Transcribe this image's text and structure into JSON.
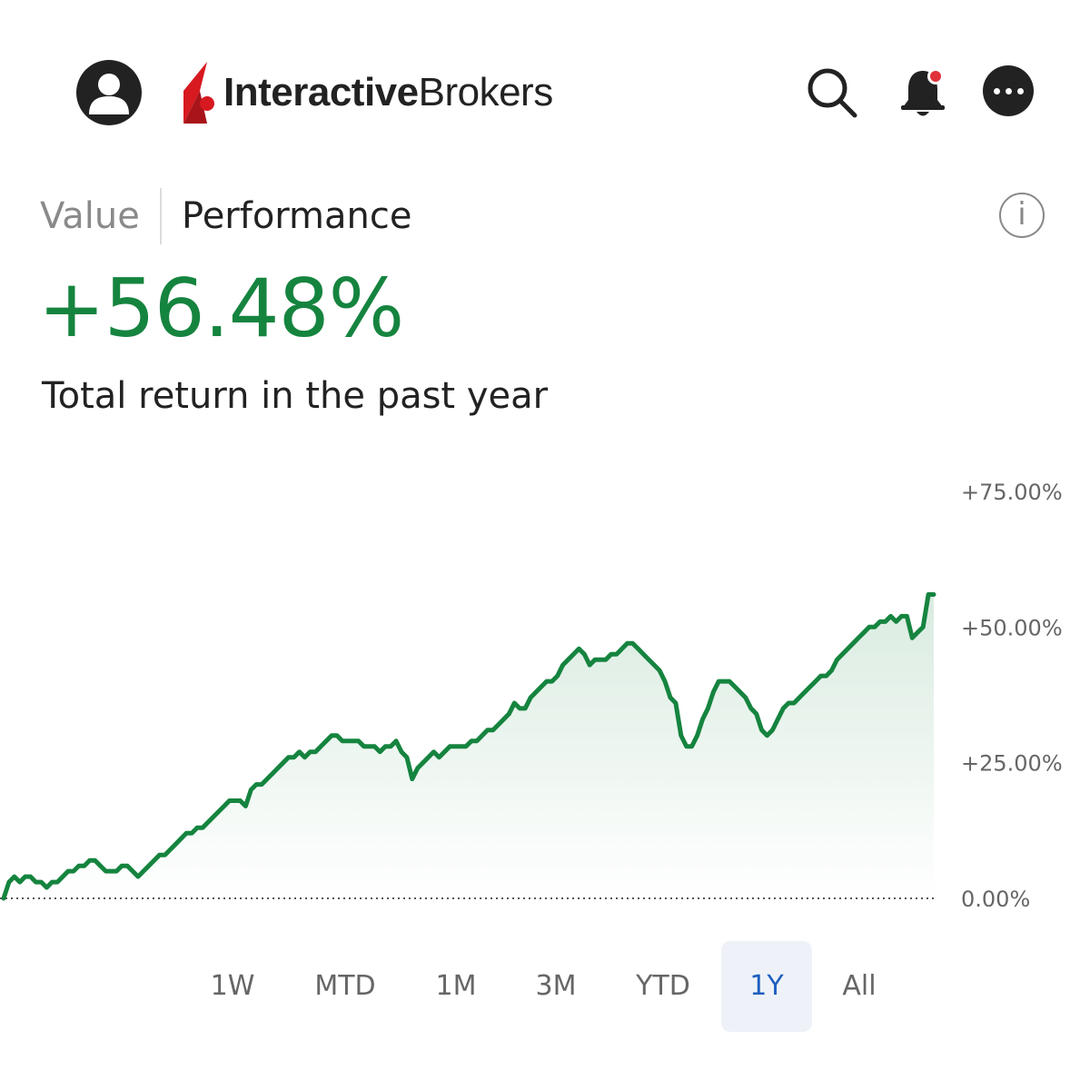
{
  "header": {
    "logo_bold": "Interactive",
    "logo_light": "Brokers",
    "brand_color": "#d71920",
    "notification_dot_color": "#e0303a"
  },
  "tabs": {
    "value_label": "Value",
    "performance_label": "Performance",
    "active": "Performance"
  },
  "summary": {
    "return_value": "+56.48%",
    "return_caption": "Total return in the past year",
    "positive_color": "#15843f"
  },
  "ranges": {
    "options": [
      "1W",
      "MTD",
      "1M",
      "3M",
      "YTD",
      "1Y",
      "All"
    ],
    "selected": "1Y",
    "selected_color": "#1f5fbf"
  },
  "chart_data": {
    "type": "area",
    "y_tick_labels": [
      "+75.00%",
      "+50.00%",
      "+25.00%",
      "0.00%"
    ],
    "y_ticks": [
      75,
      50,
      25,
      0
    ],
    "ylim": [
      0,
      75
    ],
    "baseline": 0,
    "line_color": "#15843f",
    "grid": false,
    "series": [
      {
        "values": [
          0,
          3,
          4,
          3,
          4,
          4,
          3,
          3,
          2,
          3,
          3,
          4,
          5,
          5,
          6,
          6,
          7,
          7,
          6,
          5,
          5,
          5,
          6,
          6,
          5,
          4,
          5,
          6,
          7,
          8,
          8,
          9,
          10,
          11,
          12,
          12,
          13,
          13,
          14,
          15,
          16,
          17,
          18,
          18,
          18,
          17,
          20,
          21,
          21,
          22,
          23,
          24,
          25,
          26,
          26,
          27,
          26,
          27,
          27,
          28,
          29,
          30,
          30,
          29,
          29,
          29,
          29,
          28,
          28,
          28,
          27,
          28,
          28,
          29,
          27,
          26,
          22,
          24,
          25,
          26,
          27,
          26,
          27,
          28,
          28,
          28,
          28,
          29,
          29,
          30,
          31,
          31,
          32,
          33,
          34,
          36,
          35,
          35,
          37,
          38,
          39,
          40,
          40,
          41,
          43,
          44,
          45,
          46,
          45,
          43,
          44,
          44,
          44,
          45,
          45,
          46,
          47,
          47,
          46,
          45,
          44,
          43,
          42,
          40,
          37,
          36,
          30,
          28,
          28,
          30,
          33,
          35,
          38,
          40,
          40,
          40,
          39,
          38,
          37,
          35,
          34,
          31,
          30,
          31,
          33,
          35,
          36,
          36,
          37,
          38,
          39,
          40,
          41,
          41,
          42,
          44,
          45,
          46,
          47,
          48,
          49,
          50,
          50,
          51,
          51,
          52,
          51,
          52,
          52,
          48,
          49,
          50,
          56,
          56
        ]
      }
    ]
  }
}
